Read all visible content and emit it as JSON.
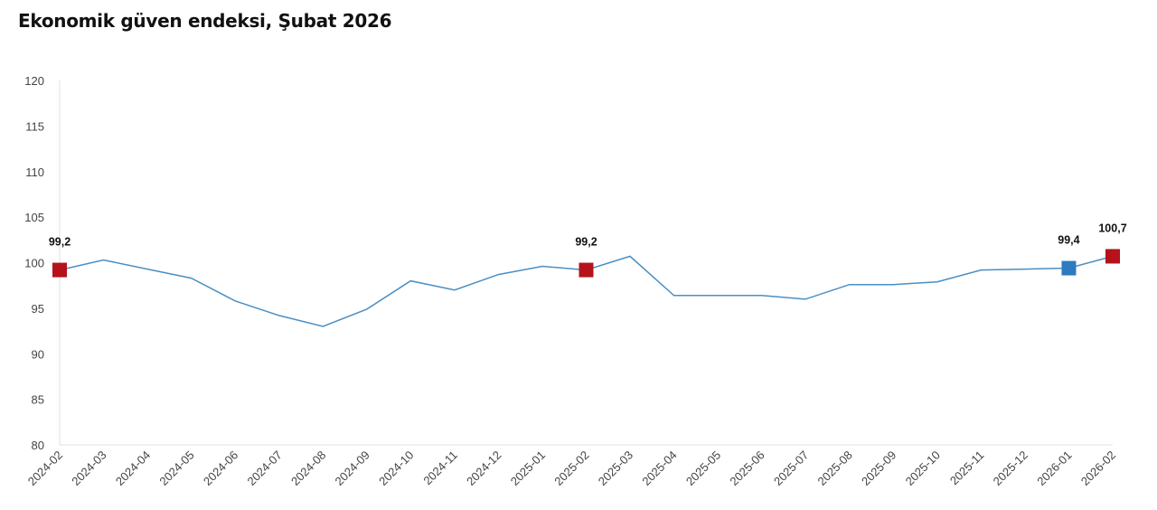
{
  "chart_data": {
    "type": "line",
    "title": "Ekonomik güven endeksi, Şubat 2026",
    "xlabel": "",
    "ylabel": "",
    "ylim": [
      80,
      120
    ],
    "yticks": [
      "80",
      "85",
      "90",
      "95",
      "100",
      "105",
      "110",
      "115",
      "120"
    ],
    "grid": false,
    "legend": "none",
    "x": [
      "2024-02",
      "2024-03",
      "2024-04",
      "2024-05",
      "2024-06",
      "2024-07",
      "2024-08",
      "2024-09",
      "2024-10",
      "2024-11",
      "2024-12",
      "2025-01",
      "2025-02",
      "2025-03",
      "2025-04",
      "2025-05",
      "2025-06",
      "2025-07",
      "2025-08",
      "2025-09",
      "2025-10",
      "2025-11",
      "2025-12",
      "2026-01",
      "2026-02"
    ],
    "series": [
      {
        "name": "Ekonomik güven endeksi",
        "color": "#4a8fc4",
        "values": [
          99.2,
          100.3,
          99.3,
          98.3,
          95.8,
          94.2,
          93.0,
          94.9,
          98.0,
          97.0,
          98.7,
          99.6,
          99.2,
          100.7,
          96.4,
          96.4,
          96.4,
          96.0,
          97.6,
          97.6,
          97.9,
          99.2,
          99.3,
          99.4,
          100.7
        ]
      }
    ],
    "highlights": [
      {
        "index": 0,
        "label": "99,2",
        "color": "#b5121b"
      },
      {
        "index": 12,
        "label": "99,2",
        "color": "#b5121b"
      },
      {
        "index": 23,
        "label": "99,4",
        "color": "#2e7bbf"
      },
      {
        "index": 24,
        "label": "100,7",
        "color": "#b5121b"
      }
    ]
  }
}
